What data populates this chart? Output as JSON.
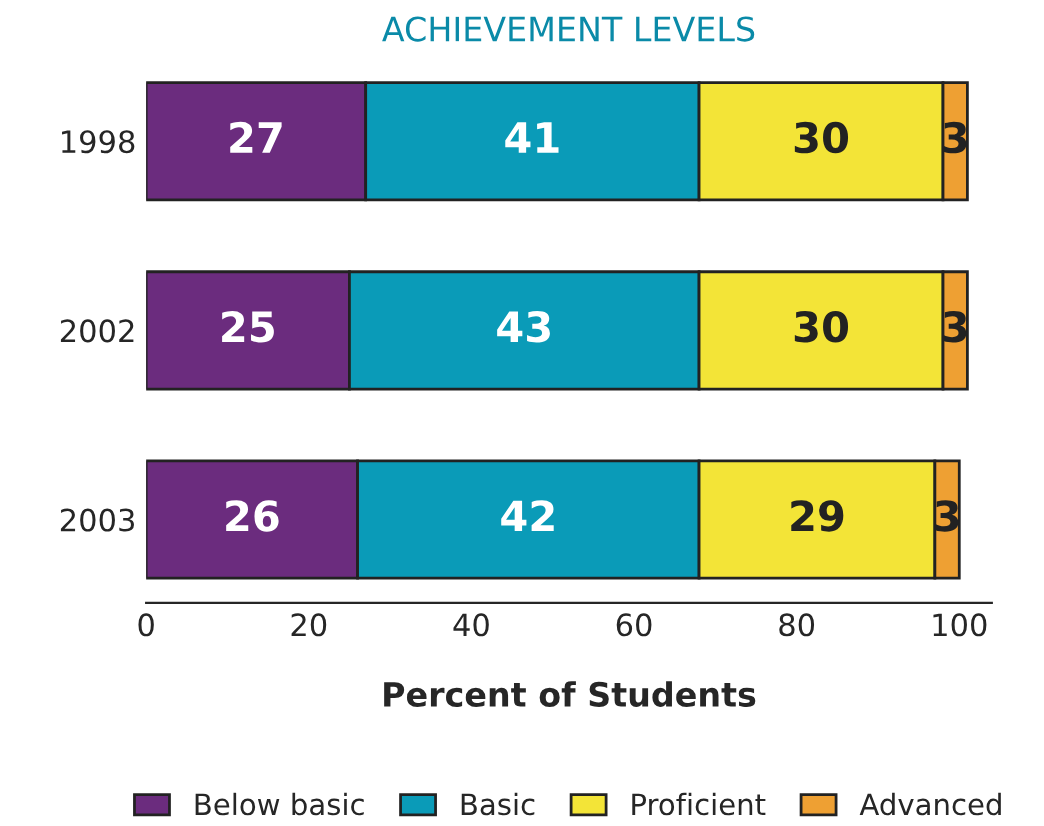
{
  "chart_data": {
    "type": "bar",
    "orientation": "horizontal",
    "stacked": true,
    "title": "ACHIEVEMENT LEVELS",
    "xlabel": "Percent of Students",
    "categories": [
      "1998",
      "2002",
      "2003"
    ],
    "series": [
      {
        "name": "Below basic",
        "color": "#6b2c7e",
        "values": [
          27,
          25,
          26
        ]
      },
      {
        "name": "Basic",
        "color": "#0a9bb8",
        "values": [
          41,
          43,
          42
        ]
      },
      {
        "name": "Proficient",
        "color": "#f3e437",
        "values": [
          30,
          30,
          29
        ]
      },
      {
        "name": "Advanced",
        "color": "#eea033",
        "values": [
          3,
          3,
          3
        ]
      }
    ],
    "xlim": [
      0,
      104
    ],
    "xticks": [
      0,
      20,
      40,
      60,
      80,
      100
    ],
    "data_labels": true,
    "grid": false,
    "legend": "bottom"
  }
}
